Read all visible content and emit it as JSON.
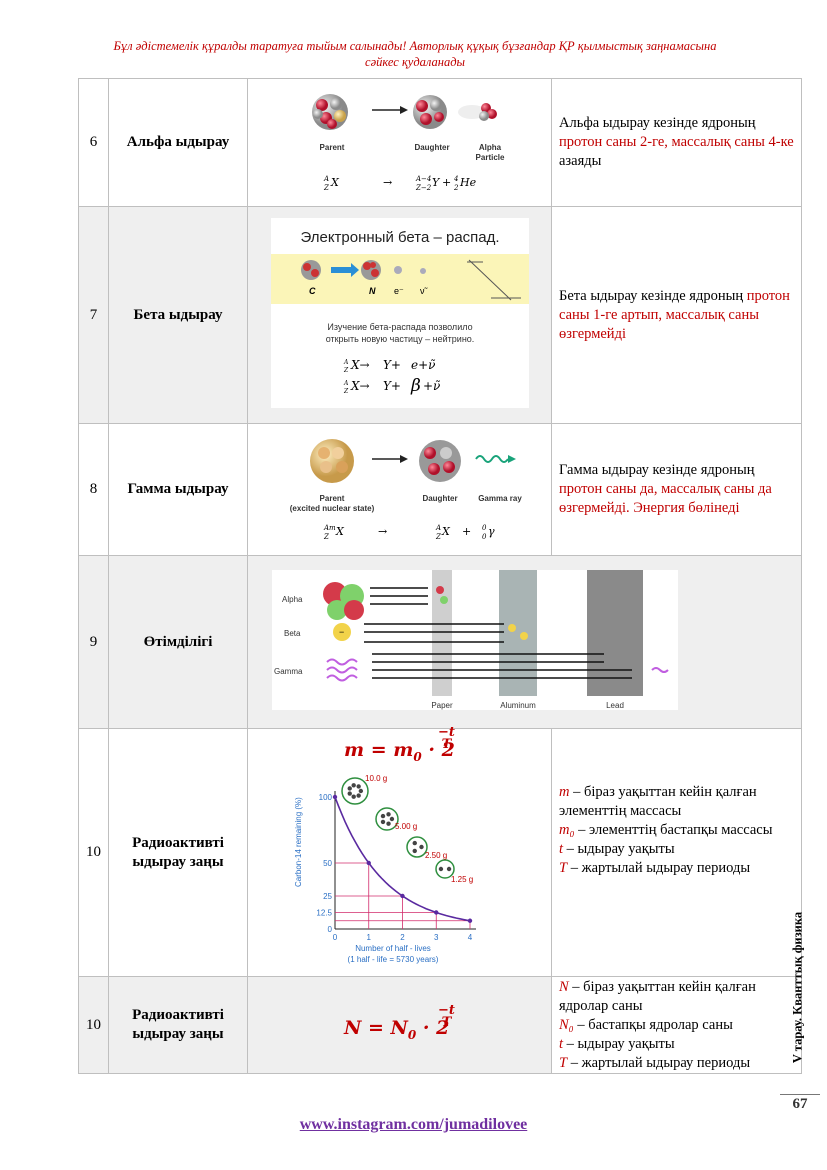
{
  "header": {
    "line1": "Бұл әдістемелік құралды таратуға тыйым салынады! Авторлық құқық бұзғандар ҚР қылмыстық заңнамасына",
    "line2": "сәйкес  қудаланады"
  },
  "rows": [
    {
      "num": "6",
      "name": "Альфа ыдырау",
      "desc": [
        {
          "t": "Альфа ыдырау кезінде ядроның ",
          "r": false
        },
        {
          "t": "протон саны 2-ге, массалық саны 4-ке",
          "r": true
        },
        {
          "t": " азаяды",
          "r": false
        }
      ],
      "img": {
        "parent": "Parent",
        "daughter": "Daughter",
        "particle1": "Alpha",
        "particle2": "Particle"
      }
    },
    {
      "num": "7",
      "name": "Бета ыдырау",
      "desc": [
        {
          "t": "Бета ыдырау кезінде ядроның ",
          "r": false
        },
        {
          "t": "протон саны 1-ге артып, массалық саны өзгермейді",
          "r": true
        }
      ],
      "img": {
        "title": "Электронный бета – распад.",
        "c": "C",
        "n": "N",
        "e": "e⁻",
        "nu": "ν̃",
        "cap1": "Изучение бета-распада позволило",
        "cap2": "открыть новую частицу – нейтрино."
      }
    },
    {
      "num": "8",
      "name": "Гамма ыдырау",
      "desc": [
        {
          "t": "Гамма ыдырау кезінде ядроның ",
          "r": false
        },
        {
          "t": "протон саны да, массалық саны да өзгермейді. Энергия бөлінеді",
          "r": true
        }
      ],
      "img": {
        "parent": "Parent",
        "parent2": "(excited nuclear state)",
        "daughter": "Daughter",
        "ray": "Gamma ray"
      }
    },
    {
      "num": "9",
      "name": "Өтімділігі",
      "img": {
        "alpha": "Alpha",
        "beta": "Beta",
        "gamma": "Gamma",
        "paper": "Paper",
        "aluminum": "Aluminum",
        "lead": "Lead"
      }
    },
    {
      "num": "10",
      "name1": "Радиоактивті",
      "name2": "ыдырау заңы",
      "formula": "m = m₀ · 2^(−t/T)",
      "chart_labels": {
        "ylabel": "Carbon-14 remaining (%)",
        "xlabel1": "Number of half - lives",
        "xlabel2": "(1 half - life = 5730 years)",
        "m1": "10.0 g",
        "m2": "5.00 g",
        "m3": "2.50 g",
        "m4": "1.25 g"
      },
      "defs": [
        {
          "sym": "m",
          "text": " – біраз уақыттан кейін қалған элементтің массасы"
        },
        {
          "sym": "m₀",
          "text": " – элементтің бастапқы массасы"
        },
        {
          "sym": "t",
          "text": " – ыдырау уақыты"
        },
        {
          "sym": "T",
          "text": " – жартылай ыдырау периоды"
        }
      ]
    },
    {
      "num": "10",
      "name1": "Радиоактивті",
      "name2": "ыдырау заңы",
      "formula": "N = N₀ · 2^(−t/T)",
      "defs": [
        {
          "sym": "N",
          "text": " – біраз уақыттан кейін қалған ядролар саны"
        },
        {
          "sym": "N₀",
          "text": " – бастапқы  ядролар саны"
        },
        {
          "sym": "t",
          "text": " – ыдырау уақыты"
        },
        {
          "sym": "T",
          "text": " – жартылай ыдырау периоды"
        }
      ]
    }
  ],
  "chart_data": {
    "type": "line",
    "title": "",
    "xlabel": "Number of half - lives (1 half - life = 5730 years)",
    "ylabel": "Carbon-14 remaining (%)",
    "x": [
      0,
      1,
      2,
      3,
      4
    ],
    "values": [
      100,
      50,
      25,
      12.5,
      6.25
    ],
    "xticks": [
      "0",
      "1",
      "2",
      "3",
      "4"
    ],
    "yticks": [
      "0",
      "12.5",
      "25",
      "50",
      "100"
    ],
    "annotations": [
      "10.0 g",
      "5.00 g",
      "2.50 g",
      "1.25 g"
    ]
  },
  "side_text": "V тарау. Кванттық физика",
  "page_number": "67",
  "footer_link": "www.instagram.com/jumadilovee"
}
